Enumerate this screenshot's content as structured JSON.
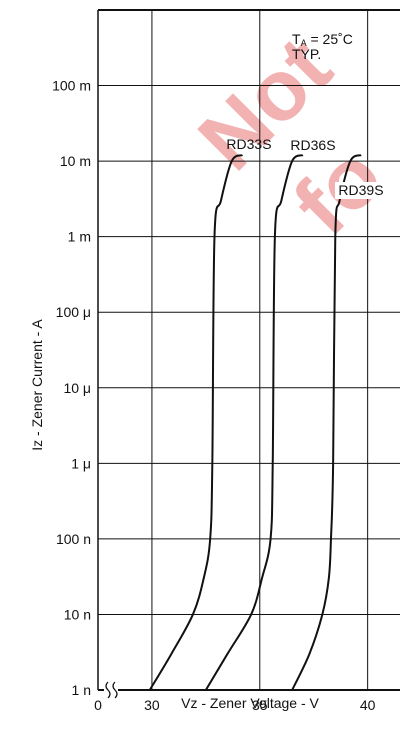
{
  "chart_data": {
    "type": "line",
    "xlabel": "Vz - Zener Voltage - V",
    "ylabel": "Iz - Zener Current - A",
    "x_ticks": [
      "0",
      "30",
      "35",
      "40"
    ],
    "y_ticks": [
      "1 n",
      "10 n",
      "100 n",
      "1 μ",
      "10 μ",
      "100 μ",
      "1 m",
      "10 m",
      "100 m"
    ],
    "y_scale": "log",
    "xlim": [
      27.5,
      41.5
    ],
    "ylim": [
      "1e-9",
      "1"
    ],
    "grid": true,
    "axis_break": true,
    "conditions": {
      "temp_prefix": "T",
      "temp_sub": "A",
      "temp_value": " = 25˚C",
      "typ": "TYP."
    },
    "watermark": {
      "line1": "Not",
      "line2": "fo"
    },
    "series": [
      {
        "name": "RD33S",
        "x": [
          29.9,
          30.9,
          31.9,
          32.4,
          32.7,
          32.8,
          32.9,
          33.2,
          33.7,
          34.2
        ],
        "y": [
          "1e-9",
          "3e-9",
          "1e-8",
          "3e-8",
          "1e-7",
          "1e-6",
          "1e-3",
          "3e-3",
          "1e-2",
          "1.2e-2"
        ]
      },
      {
        "name": "RD36S",
        "x": [
          32.5,
          33.5,
          34.6,
          35.1,
          35.5,
          35.6,
          35.7,
          36.0,
          36.5,
          37.0
        ],
        "y": [
          "1e-9",
          "3e-9",
          "1e-8",
          "3e-8",
          "1e-7",
          "1e-6",
          "1e-3",
          "3e-3",
          "1e-2",
          "1.2e-2"
        ]
      },
      {
        "name": "RD39S",
        "x": [
          36.5,
          37.3,
          37.9,
          38.2,
          38.3,
          38.4,
          38.5,
          38.7,
          39.2,
          39.7
        ],
        "y": [
          "1e-9",
          "3e-9",
          "1e-8",
          "3e-8",
          "1e-7",
          "1e-6",
          "1e-3",
          "3e-3",
          "1e-2",
          "1.2e-2"
        ]
      }
    ]
  }
}
